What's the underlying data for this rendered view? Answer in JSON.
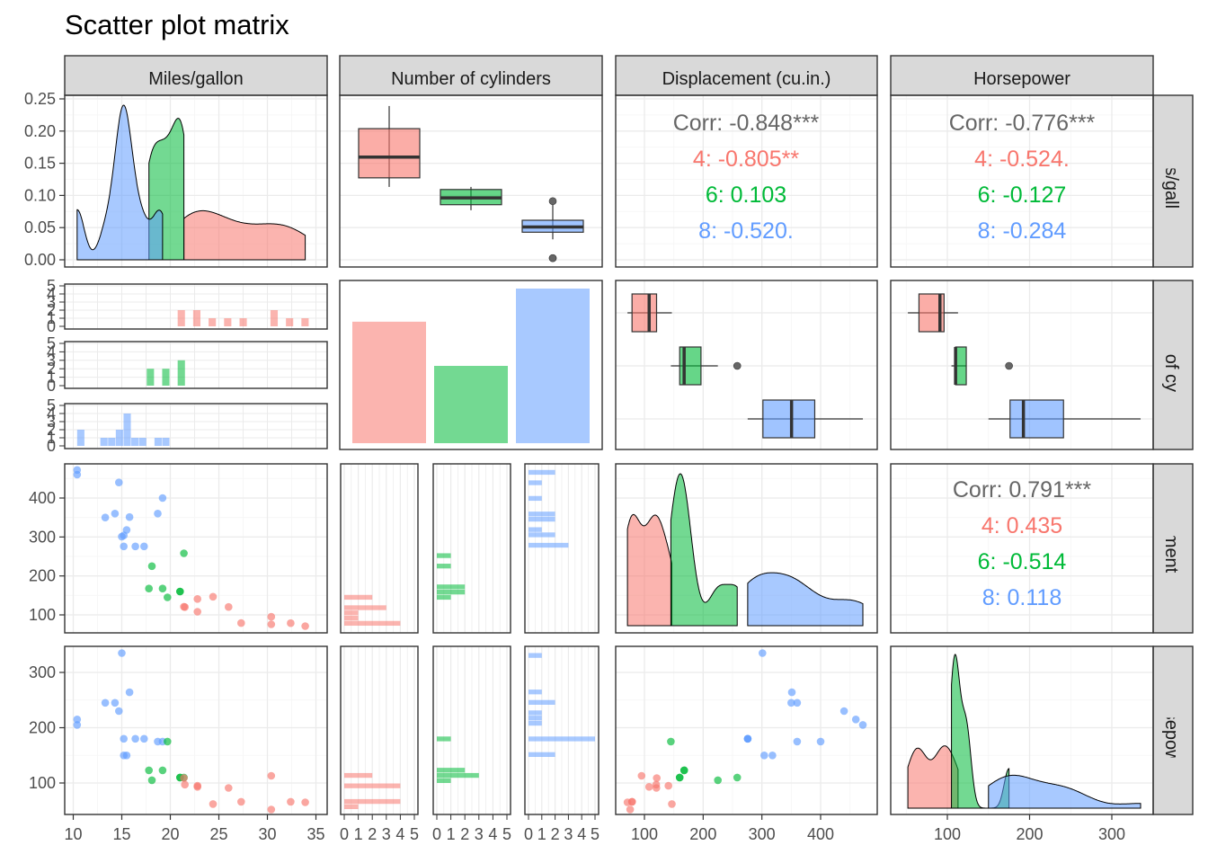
{
  "title": "Scatter plot matrix",
  "variables": [
    "Miles/gallon",
    "Number of cylinders",
    "Displacement (cu.in.)",
    "Horsepower"
  ],
  "groups": [
    "4",
    "6",
    "8"
  ],
  "colors": {
    "4": "#F8766D",
    "6": "#00BA38",
    "8": "#619CFF",
    "overall": "#666666"
  },
  "axis_ticks": {
    "mpg_density_y": [
      "0.00",
      "0.05",
      "0.10",
      "0.15",
      "0.20",
      "0.25"
    ],
    "count_y": [
      "0",
      "1",
      "2",
      "3",
      "4",
      "5"
    ],
    "disp_y": [
      "100",
      "200",
      "300",
      "400"
    ],
    "hp_y": [
      "100",
      "200",
      "300"
    ],
    "mpg_x": [
      "10",
      "15",
      "20",
      "25",
      "30",
      "35"
    ],
    "count_x": [
      "0",
      "1",
      "2",
      "3",
      "4",
      "5"
    ],
    "disp_x": [
      "100",
      "200",
      "300",
      "400"
    ],
    "hp_x": [
      "100",
      "200",
      "300"
    ]
  },
  "correlations": {
    "mpg_disp": [
      "Corr: -0.848***",
      "4: -0.805**",
      "6: 0.103",
      "8: -0.520."
    ],
    "mpg_hp": [
      "Corr: -0.776***",
      "4: -0.524.",
      "6: -0.127",
      "8: -0.284"
    ],
    "disp_hp": [
      "Corr: 0.791***",
      "4: 0.435",
      "6: -0.514",
      "8: 0.118"
    ]
  },
  "chart_data": {
    "type": "scatter",
    "title": "Scatter plot matrix",
    "cyl_counts": {
      "4": 11,
      "6": 7,
      "8": 14
    },
    "records": [
      {
        "mpg": 21.0,
        "cyl": "6",
        "disp": 160,
        "hp": 110
      },
      {
        "mpg": 21.0,
        "cyl": "6",
        "disp": 160,
        "hp": 110
      },
      {
        "mpg": 22.8,
        "cyl": "4",
        "disp": 108,
        "hp": 93
      },
      {
        "mpg": 21.4,
        "cyl": "6",
        "disp": 258,
        "hp": 110
      },
      {
        "mpg": 18.7,
        "cyl": "8",
        "disp": 360,
        "hp": 175
      },
      {
        "mpg": 18.1,
        "cyl": "6",
        "disp": 225,
        "hp": 105
      },
      {
        "mpg": 14.3,
        "cyl": "8",
        "disp": 360,
        "hp": 245
      },
      {
        "mpg": 24.4,
        "cyl": "4",
        "disp": 146.7,
        "hp": 62
      },
      {
        "mpg": 22.8,
        "cyl": "4",
        "disp": 140.8,
        "hp": 95
      },
      {
        "mpg": 19.2,
        "cyl": "6",
        "disp": 167.6,
        "hp": 123
      },
      {
        "mpg": 17.8,
        "cyl": "6",
        "disp": 167.6,
        "hp": 123
      },
      {
        "mpg": 16.4,
        "cyl": "8",
        "disp": 275.8,
        "hp": 180
      },
      {
        "mpg": 17.3,
        "cyl": "8",
        "disp": 275.8,
        "hp": 180
      },
      {
        "mpg": 15.2,
        "cyl": "8",
        "disp": 275.8,
        "hp": 180
      },
      {
        "mpg": 10.4,
        "cyl": "8",
        "disp": 472,
        "hp": 205
      },
      {
        "mpg": 10.4,
        "cyl": "8",
        "disp": 460,
        "hp": 215
      },
      {
        "mpg": 14.7,
        "cyl": "8",
        "disp": 440,
        "hp": 230
      },
      {
        "mpg": 32.4,
        "cyl": "4",
        "disp": 78.7,
        "hp": 66
      },
      {
        "mpg": 30.4,
        "cyl": "4",
        "disp": 75.7,
        "hp": 52
      },
      {
        "mpg": 33.9,
        "cyl": "4",
        "disp": 71.1,
        "hp": 65
      },
      {
        "mpg": 21.5,
        "cyl": "4",
        "disp": 120.1,
        "hp": 97
      },
      {
        "mpg": 15.5,
        "cyl": "8",
        "disp": 318,
        "hp": 150
      },
      {
        "mpg": 15.2,
        "cyl": "8",
        "disp": 304,
        "hp": 150
      },
      {
        "mpg": 13.3,
        "cyl": "8",
        "disp": 350,
        "hp": 245
      },
      {
        "mpg": 19.2,
        "cyl": "8",
        "disp": 400,
        "hp": 175
      },
      {
        "mpg": 27.3,
        "cyl": "4",
        "disp": 79,
        "hp": 66
      },
      {
        "mpg": 26.0,
        "cyl": "4",
        "disp": 120.3,
        "hp": 91
      },
      {
        "mpg": 30.4,
        "cyl": "4",
        "disp": 95.1,
        "hp": 113
      },
      {
        "mpg": 15.8,
        "cyl": "8",
        "disp": 351,
        "hp": 264
      },
      {
        "mpg": 19.7,
        "cyl": "6",
        "disp": 145,
        "hp": 175
      },
      {
        "mpg": 15.0,
        "cyl": "8",
        "disp": 301,
        "hp": 335
      },
      {
        "mpg": 21.4,
        "cyl": "4",
        "disp": 121,
        "hp": 109
      }
    ]
  }
}
